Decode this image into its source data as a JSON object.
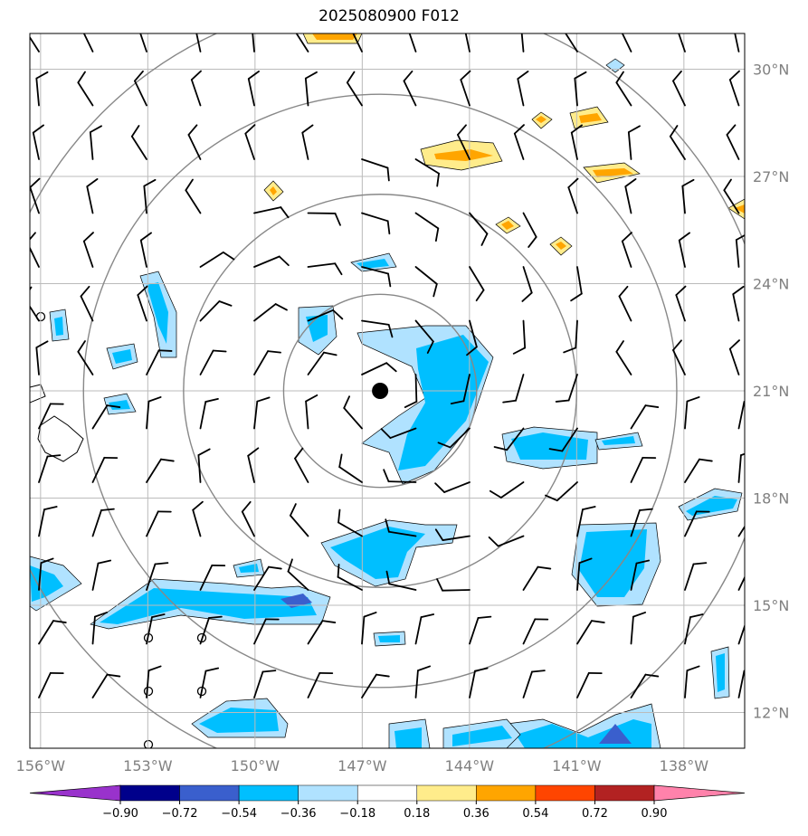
{
  "title": "2025080900 F012",
  "map": {
    "lon_range": [
      -156.3,
      -136.3
    ],
    "lat_range": [
      11.0,
      31.0
    ],
    "storm_center": {
      "lon": -146.5,
      "lat": 21.0
    },
    "range_ring_radii_deg": [
      2.7,
      5.5,
      8.3,
      11.0
    ],
    "grid_lons": [
      -156,
      -153,
      -150,
      -147,
      -144,
      -141,
      -138
    ],
    "grid_lats": [
      12,
      15,
      18,
      21,
      24,
      27,
      30
    ],
    "lon_labels": [
      "156°W",
      "153°W",
      "150°W",
      "147°W",
      "144°W",
      "141°W",
      "138°W"
    ],
    "lat_labels": [
      "12°N",
      "15°N",
      "18°N",
      "21°N",
      "24°N",
      "27°N",
      "30°N"
    ],
    "grid_color": "#bbbbbb",
    "ring_color": "#888888"
  },
  "colorbar": {
    "levels": [
      "−0.90",
      "−0.72",
      "−0.54",
      "−0.36",
      "−0.18",
      "0.18",
      "0.36",
      "0.54",
      "0.72",
      "0.90"
    ],
    "colors": [
      "#9932cc",
      "#00008b",
      "#3a5fcd",
      "#00bfff",
      "#b0e2ff",
      "#ffffff",
      "#ffec8b",
      "#ffa500",
      "#ff4500",
      "#b22222",
      "#ff82ab"
    ]
  }
}
